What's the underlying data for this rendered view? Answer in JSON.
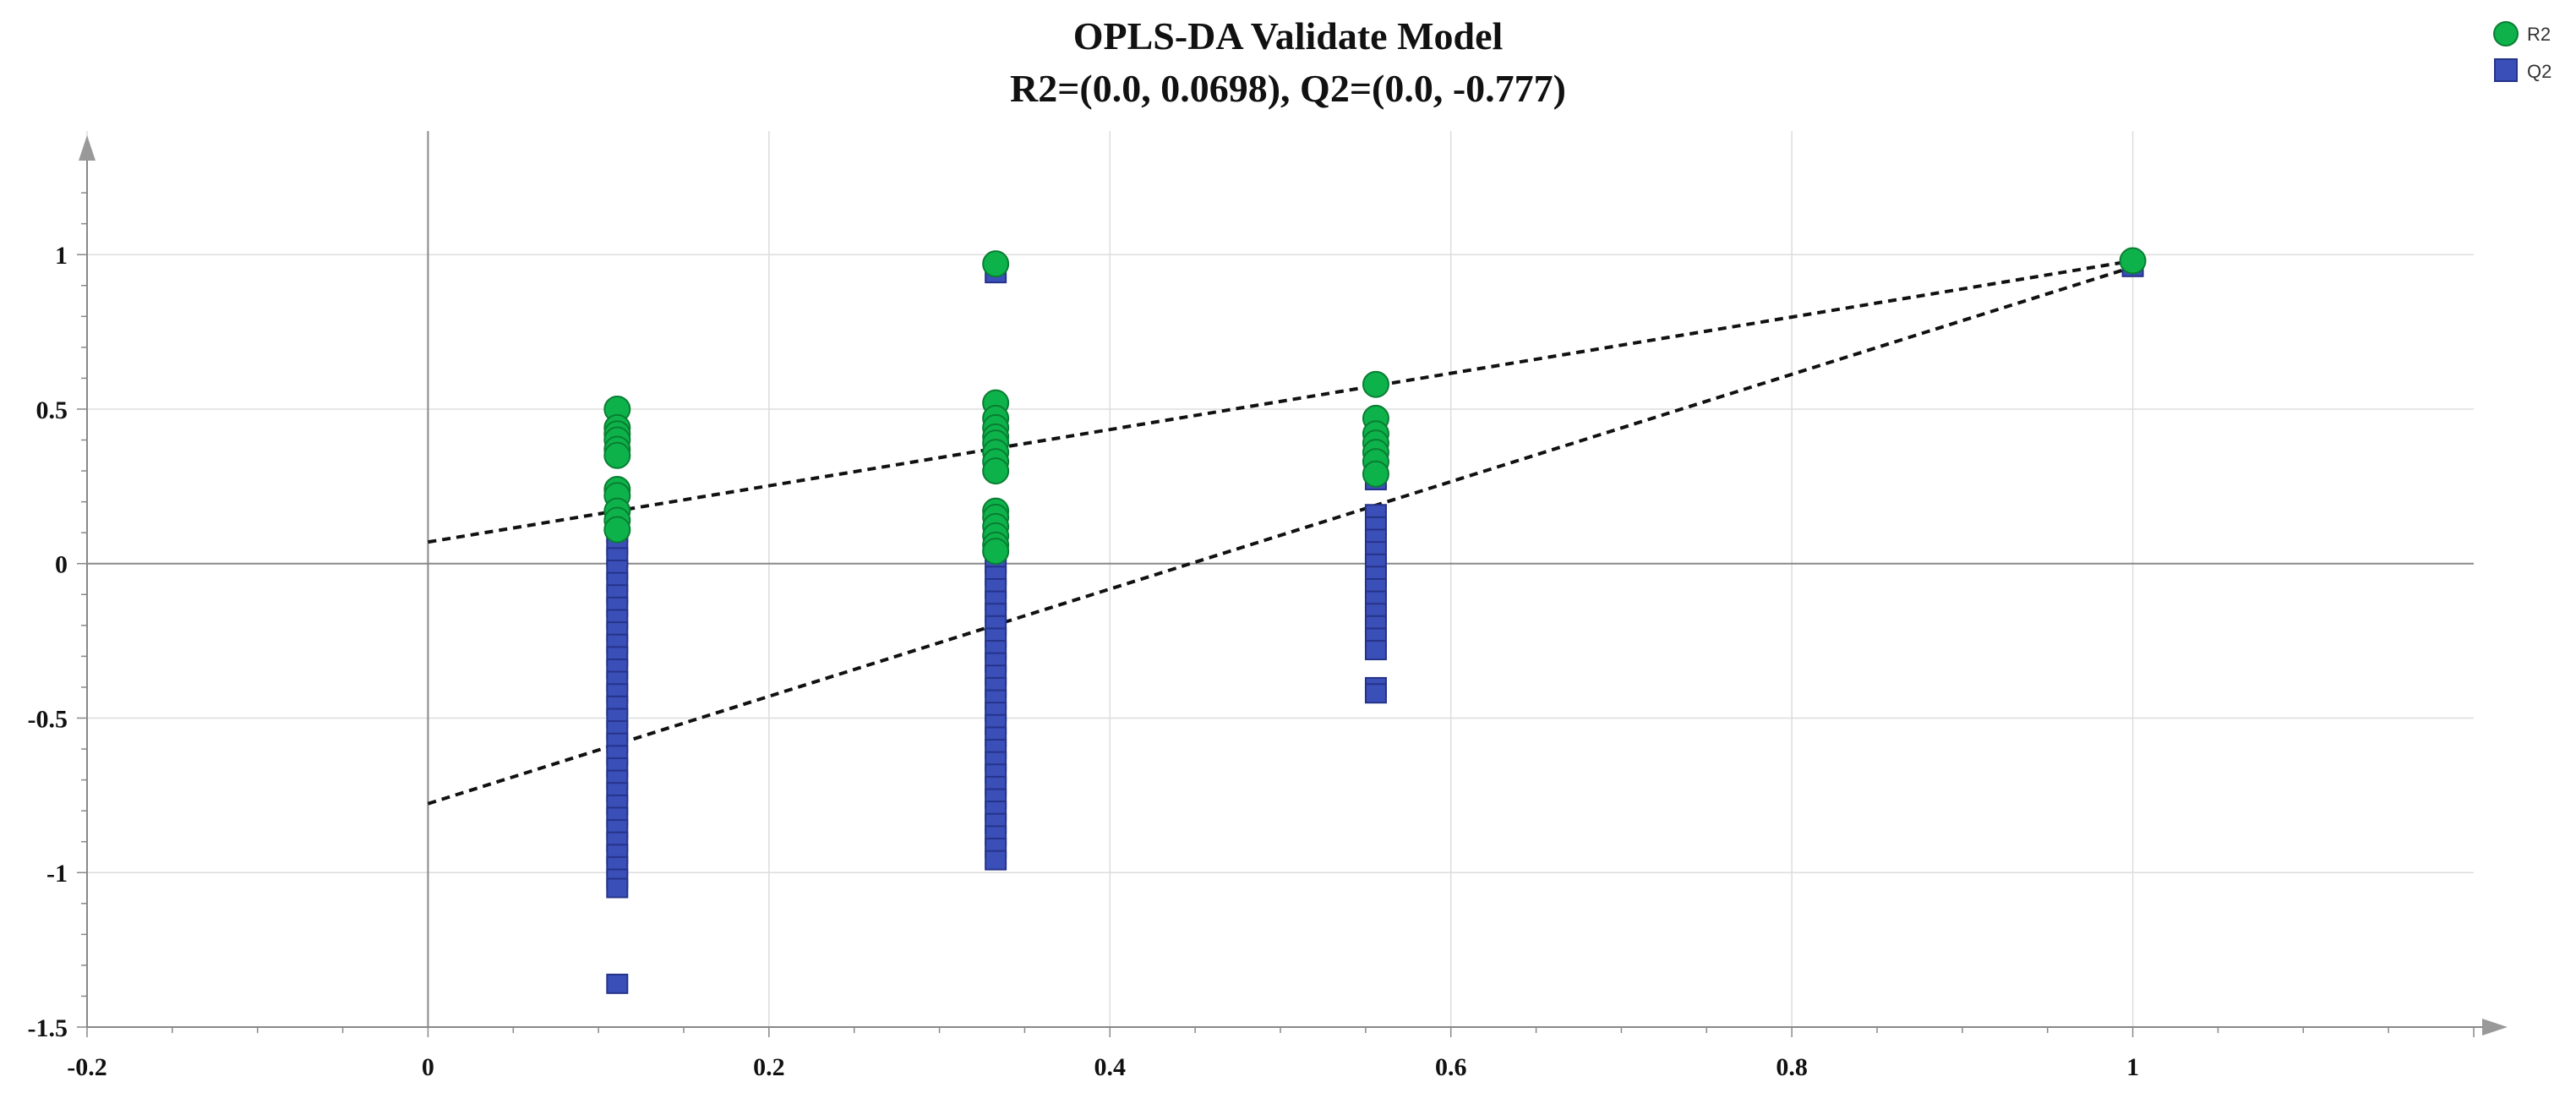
{
  "chart_data": {
    "type": "scatter",
    "title": "OPLS-DA Validate Model",
    "subtitle": "R2=(0.0, 0.0698), Q2=(0.0, -0.777)",
    "xlabel": "",
    "ylabel": "",
    "xlim": [
      -0.2,
      1.2
    ],
    "ylim": [
      -1.5,
      1.4
    ],
    "grid": true,
    "legend_position": "top-right",
    "x_ticks": [
      -0.2,
      0,
      0.2,
      0.4,
      0.6,
      0.8,
      1
    ],
    "x_tick_labels": [
      "-0.2",
      "0",
      "0.2",
      "0.4",
      "0.6",
      "0.8",
      "1"
    ],
    "y_ticks": [
      1,
      0.5,
      0,
      -0.5,
      -1,
      -1.5
    ],
    "y_tick_labels": [
      "1",
      "0.5",
      "0",
      "-0.5",
      "-1",
      "-1.5"
    ],
    "series": [
      {
        "name": "R2",
        "marker": "circle",
        "color": "#0db34a",
        "stroke": "#0a7d33",
        "points": [
          [
            0.111,
            0.5
          ],
          [
            0.111,
            0.44
          ],
          [
            0.111,
            0.42
          ],
          [
            0.111,
            0.4
          ],
          [
            0.111,
            0.37
          ],
          [
            0.111,
            0.35
          ],
          [
            0.111,
            0.24
          ],
          [
            0.111,
            0.22
          ],
          [
            0.111,
            0.17
          ],
          [
            0.111,
            0.14
          ],
          [
            0.111,
            0.11
          ],
          [
            0.333,
            0.97
          ],
          [
            0.333,
            0.52
          ],
          [
            0.333,
            0.47
          ],
          [
            0.333,
            0.44
          ],
          [
            0.333,
            0.41
          ],
          [
            0.333,
            0.39
          ],
          [
            0.333,
            0.36
          ],
          [
            0.333,
            0.33
          ],
          [
            0.333,
            0.3
          ],
          [
            0.333,
            0.17
          ],
          [
            0.333,
            0.15
          ],
          [
            0.333,
            0.12
          ],
          [
            0.333,
            0.09
          ],
          [
            0.333,
            0.06
          ],
          [
            0.333,
            0.04
          ],
          [
            0.556,
            0.58
          ],
          [
            0.556,
            0.47
          ],
          [
            0.556,
            0.42
          ],
          [
            0.556,
            0.39
          ],
          [
            0.556,
            0.36
          ],
          [
            0.556,
            0.33
          ],
          [
            0.556,
            0.29
          ],
          [
            1.0,
            0.98
          ]
        ],
        "regression": {
          "intercept": 0.0698,
          "slope": 0.9102
        }
      },
      {
        "name": "Q2",
        "marker": "square",
        "color": "#3a4fb8",
        "stroke": "#26338a",
        "points": [
          [
            0.111,
            0.18
          ],
          [
            0.111,
            0.14
          ],
          [
            0.111,
            0.1
          ],
          [
            0.111,
            0.06
          ],
          [
            0.111,
            0.02
          ],
          [
            0.111,
            -0.02
          ],
          [
            0.111,
            -0.06
          ],
          [
            0.111,
            -0.1
          ],
          [
            0.111,
            -0.14
          ],
          [
            0.111,
            -0.18
          ],
          [
            0.111,
            -0.22
          ],
          [
            0.111,
            -0.26
          ],
          [
            0.111,
            -0.3
          ],
          [
            0.111,
            -0.34
          ],
          [
            0.111,
            -0.38
          ],
          [
            0.111,
            -0.42
          ],
          [
            0.111,
            -0.46
          ],
          [
            0.111,
            -0.5
          ],
          [
            0.111,
            -0.54
          ],
          [
            0.111,
            -0.58
          ],
          [
            0.111,
            -0.62
          ],
          [
            0.111,
            -0.66
          ],
          [
            0.111,
            -0.7
          ],
          [
            0.111,
            -0.74
          ],
          [
            0.111,
            -0.78
          ],
          [
            0.111,
            -0.82
          ],
          [
            0.111,
            -0.86
          ],
          [
            0.111,
            -0.9
          ],
          [
            0.111,
            -0.94
          ],
          [
            0.111,
            -0.98
          ],
          [
            0.111,
            -1.02
          ],
          [
            0.111,
            -1.05
          ],
          [
            0.111,
            -1.36
          ],
          [
            0.333,
            0.94
          ],
          [
            0.333,
            0.16
          ],
          [
            0.333,
            0.12
          ],
          [
            0.333,
            0.08
          ],
          [
            0.333,
            0.04
          ],
          [
            0.333,
            0.0
          ],
          [
            0.333,
            -0.04
          ],
          [
            0.333,
            -0.08
          ],
          [
            0.333,
            -0.12
          ],
          [
            0.333,
            -0.16
          ],
          [
            0.333,
            -0.2
          ],
          [
            0.333,
            -0.24
          ],
          [
            0.333,
            -0.28
          ],
          [
            0.333,
            -0.32
          ],
          [
            0.333,
            -0.36
          ],
          [
            0.333,
            -0.4
          ],
          [
            0.333,
            -0.44
          ],
          [
            0.333,
            -0.48
          ],
          [
            0.333,
            -0.52
          ],
          [
            0.333,
            -0.56
          ],
          [
            0.333,
            -0.6
          ],
          [
            0.333,
            -0.64
          ],
          [
            0.333,
            -0.68
          ],
          [
            0.333,
            -0.72
          ],
          [
            0.333,
            -0.76
          ],
          [
            0.333,
            -0.8
          ],
          [
            0.333,
            -0.84
          ],
          [
            0.333,
            -0.88
          ],
          [
            0.333,
            -0.92
          ],
          [
            0.333,
            -0.96
          ],
          [
            0.556,
            0.27
          ],
          [
            0.556,
            0.16
          ],
          [
            0.556,
            0.12
          ],
          [
            0.556,
            0.08
          ],
          [
            0.556,
            0.04
          ],
          [
            0.556,
            0.0
          ],
          [
            0.556,
            -0.04
          ],
          [
            0.556,
            -0.08
          ],
          [
            0.556,
            -0.12
          ],
          [
            0.556,
            -0.16
          ],
          [
            0.556,
            -0.2
          ],
          [
            0.556,
            -0.24
          ],
          [
            0.556,
            -0.28
          ],
          [
            0.556,
            -0.4
          ],
          [
            0.556,
            -0.42
          ],
          [
            1.0,
            0.96
          ]
        ],
        "regression": {
          "intercept": -0.777,
          "slope": 1.737
        }
      }
    ]
  }
}
